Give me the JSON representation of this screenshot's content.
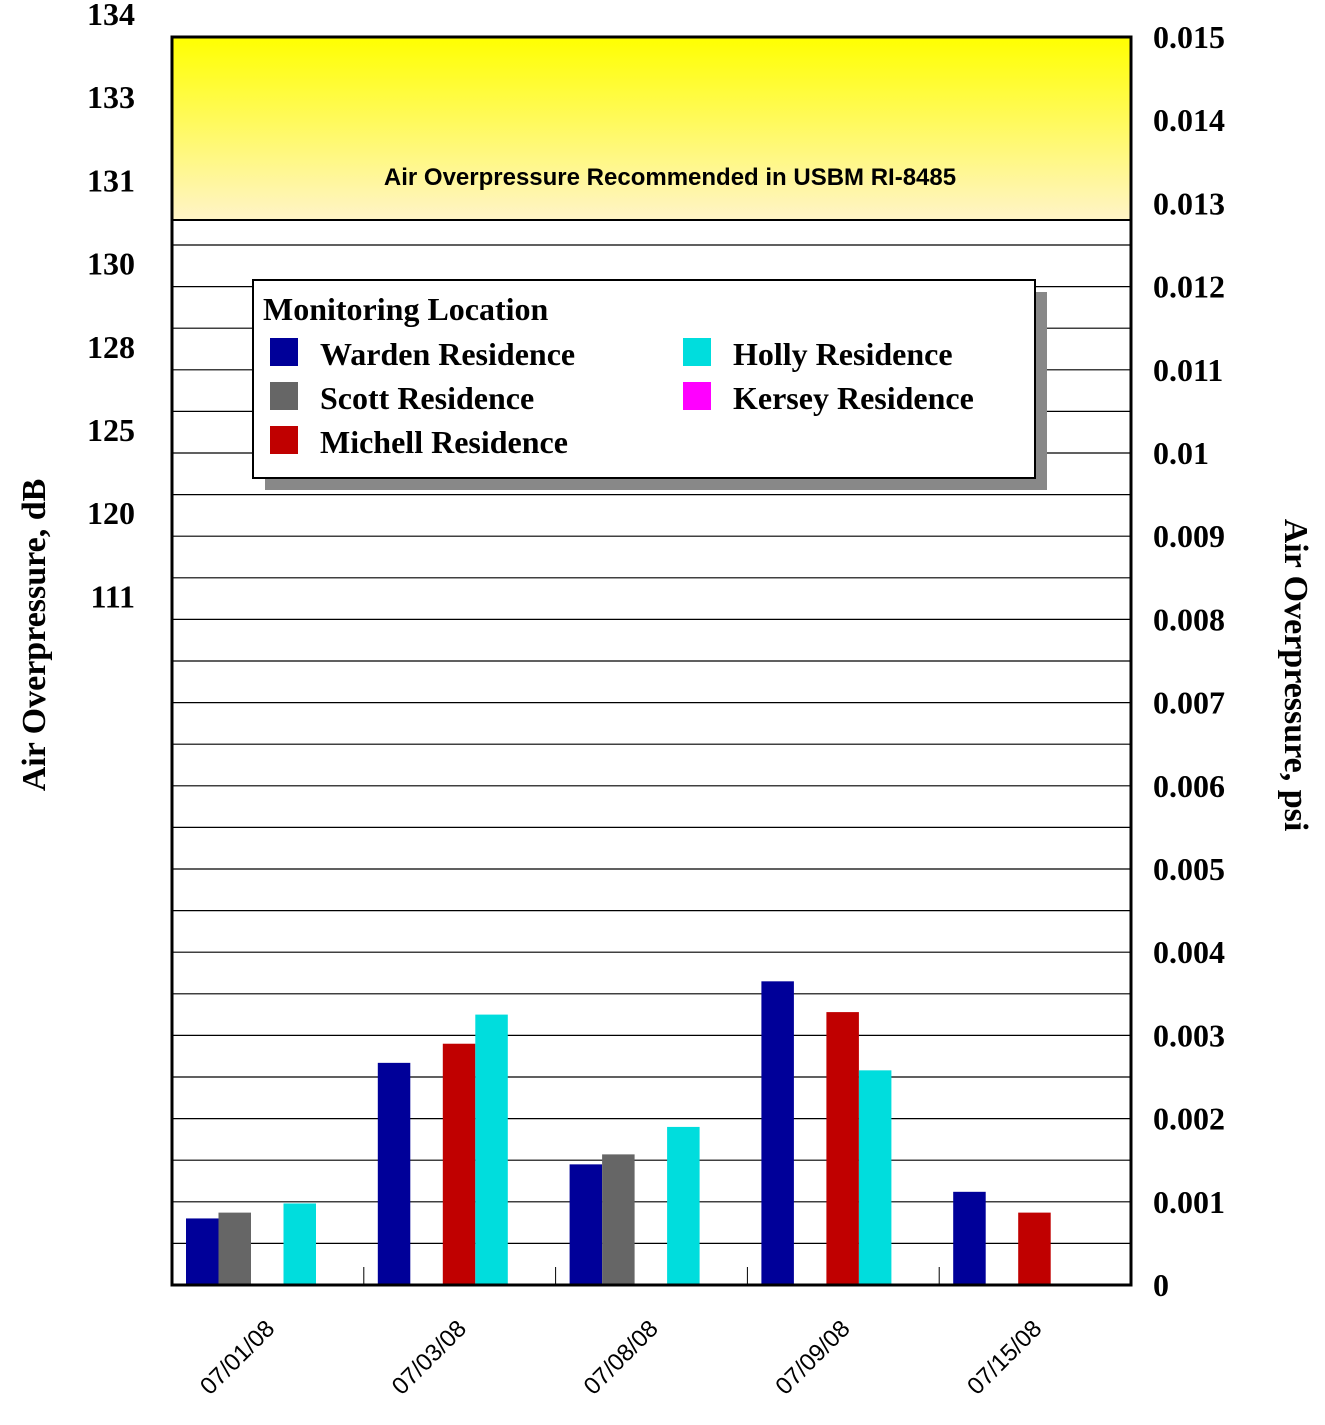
{
  "chart_data": {
    "type": "bar",
    "categories": [
      "07/01/08",
      "07/03/08",
      "07/08/08",
      "07/09/08",
      "07/15/08"
    ],
    "series": [
      {
        "name": "Warden Residence",
        "color": "#000099",
        "values": [
          0.0008,
          0.00267,
          0.00145,
          0.00365,
          0.00112
        ]
      },
      {
        "name": "Scott Residence",
        "color": "#666666",
        "values": [
          0.00087,
          null,
          0.00157,
          null,
          null
        ]
      },
      {
        "name": "Michell Residence",
        "color": "#c00000",
        "values": [
          null,
          0.0029,
          null,
          0.00328,
          0.00087
        ]
      },
      {
        "name": "Holly Residence",
        "color": "#00dddd",
        "values": [
          0.00098,
          0.00325,
          0.0019,
          0.00258,
          null
        ]
      },
      {
        "name": "Kersey Residence",
        "color": "#ff00ff",
        "values": [
          null,
          null,
          null,
          null,
          null
        ]
      }
    ],
    "legend": {
      "title": "Monitoring Location",
      "placement": "upper-left inside plot"
    },
    "ylabel_left": "Air Overpressure, dB",
    "ylabel_right": "Air Overpressure, psi",
    "yticks_left": [
      "134",
      "133",
      "131",
      "130",
      "128",
      "125",
      "120",
      "111"
    ],
    "yticks_right": [
      "0.015",
      "0.014",
      "0.013",
      "0.012",
      "0.011",
      "0.01",
      "0.009",
      "0.008",
      "0.007",
      "0.006",
      "0.005",
      "0.004",
      "0.003",
      "0.002",
      "0.001",
      "0"
    ],
    "ylim_psi": [
      0,
      0.015
    ],
    "gridline_step_psi": 0.0005,
    "limit_band": {
      "label": "Air Overpressure Recommended in USBM RI-8485",
      "from_psi": 0.0128,
      "to_psi": 0.015
    },
    "grid": true
  }
}
